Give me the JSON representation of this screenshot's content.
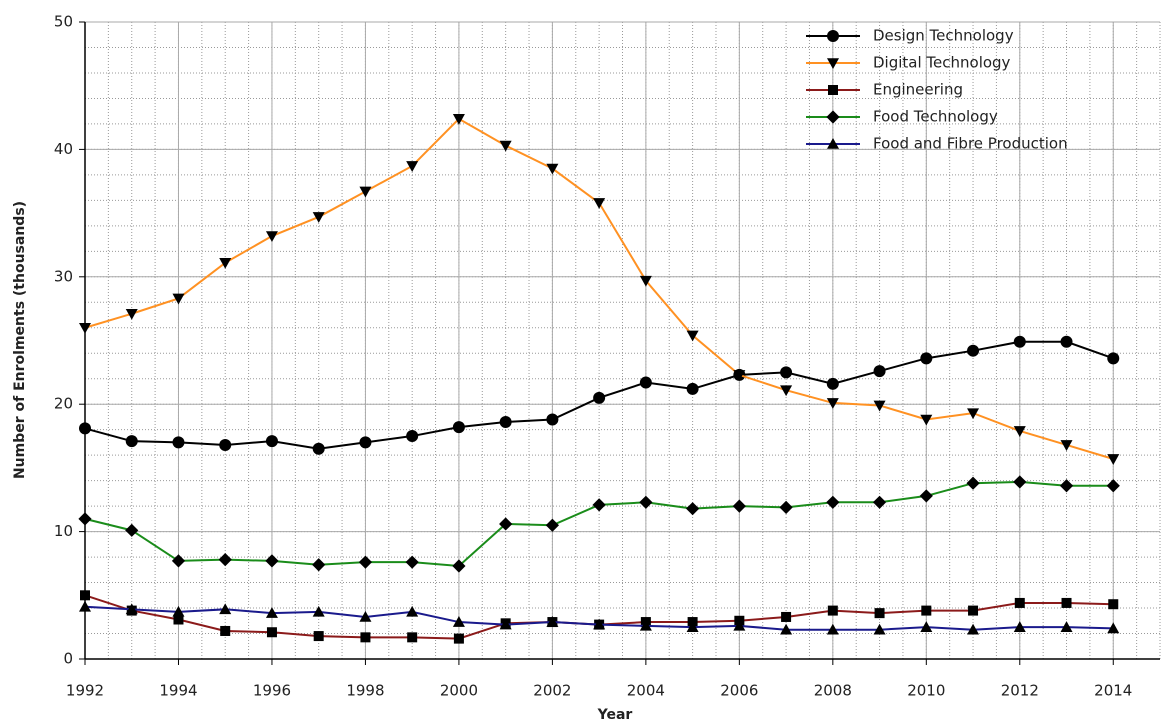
{
  "chart_data": {
    "type": "line",
    "x_label": "Year",
    "y_label": "Number of Enrolments (thousands)",
    "x": [
      1992,
      1993,
      1994,
      1995,
      1996,
      1997,
      1998,
      1999,
      2000,
      2001,
      2002,
      2003,
      2004,
      2005,
      2006,
      2007,
      2008,
      2009,
      2010,
      2011,
      2012,
      2013,
      2014
    ],
    "xlim": [
      1992,
      2015
    ],
    "xticks": [
      1992,
      1994,
      1996,
      1998,
      2000,
      2002,
      2004,
      2006,
      2008,
      2010,
      2012,
      2014
    ],
    "ylim": [
      0,
      50
    ],
    "yticks": [
      0,
      10,
      20,
      30,
      40,
      50
    ],
    "grid": true,
    "legend": "top-right",
    "series": [
      {
        "name": "Design Technology",
        "color": "#000000",
        "marker": "circle",
        "values": [
          18.1,
          17.1,
          17.0,
          16.8,
          17.1,
          16.5,
          17.0,
          17.5,
          18.2,
          18.6,
          18.8,
          20.5,
          21.7,
          21.2,
          22.3,
          22.5,
          21.6,
          22.6,
          23.6,
          24.2,
          24.9,
          24.9,
          23.6
        ]
      },
      {
        "name": "Digital Technology",
        "color": "#ff9122",
        "marker": "triangle-down",
        "values": [
          26.0,
          27.1,
          28.3,
          31.1,
          33.2,
          34.7,
          36.7,
          38.7,
          42.4,
          40.3,
          38.5,
          35.8,
          29.7,
          25.4,
          22.3,
          21.1,
          20.1,
          19.9,
          18.8,
          19.3,
          17.9,
          16.8,
          15.7
        ]
      },
      {
        "name": "Engineering",
        "color": "#8b1a1a",
        "marker": "square",
        "values": [
          5.0,
          3.8,
          3.1,
          2.2,
          2.1,
          1.8,
          1.7,
          1.7,
          1.6,
          2.8,
          2.9,
          2.7,
          2.9,
          2.9,
          3.0,
          3.3,
          3.8,
          3.6,
          3.8,
          3.8,
          4.4,
          4.4,
          4.3
        ]
      },
      {
        "name": "Food Technology",
        "color": "#1a8c1a",
        "marker": "diamond",
        "values": [
          11.0,
          10.1,
          7.7,
          7.8,
          7.7,
          7.4,
          7.6,
          7.6,
          7.3,
          10.6,
          10.5,
          12.1,
          12.3,
          11.8,
          12.0,
          11.9,
          12.3,
          12.3,
          12.8,
          13.8,
          13.9,
          13.6,
          13.6
        ]
      },
      {
        "name": "Food and Fibre Production",
        "color": "#1a1a8c",
        "marker": "triangle-up",
        "values": [
          4.1,
          3.9,
          3.7,
          3.9,
          3.6,
          3.7,
          3.3,
          3.7,
          2.9,
          2.7,
          2.9,
          2.7,
          2.6,
          2.5,
          2.6,
          2.3,
          2.3,
          2.3,
          2.5,
          2.3,
          2.5,
          2.5,
          2.4
        ]
      }
    ]
  }
}
